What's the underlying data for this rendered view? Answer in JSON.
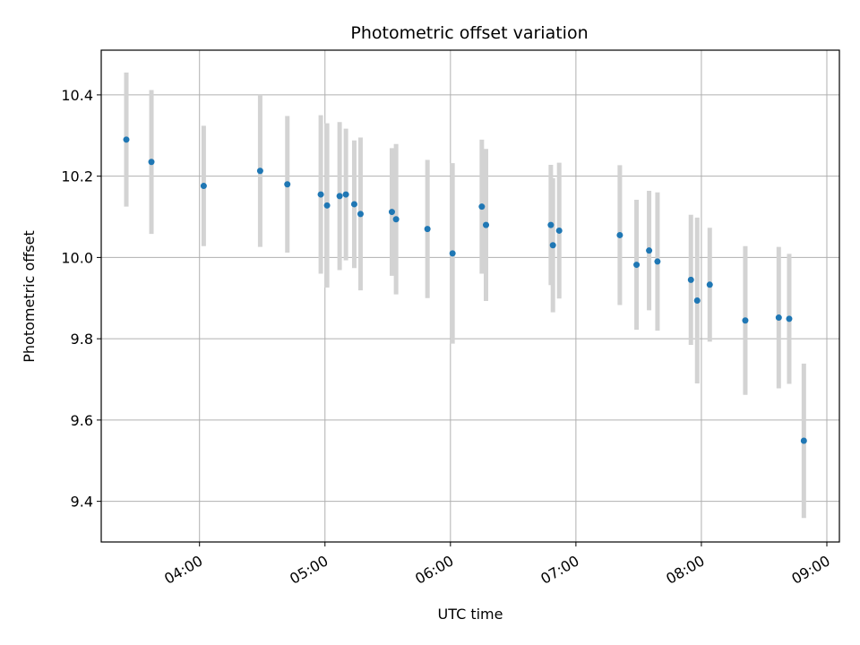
{
  "chart_data": {
    "type": "scatter",
    "title": "Photometric offset variation",
    "xlabel": "UTC time",
    "ylabel": "Photometric offset",
    "xlim": [
      "03:13",
      "09:06"
    ],
    "ylim": [
      9.3,
      10.51
    ],
    "x_ticks": [
      "04:00",
      "05:00",
      "06:00",
      "07:00",
      "08:00",
      "09:00"
    ],
    "y_ticks": [
      "9.4",
      "9.6",
      "9.8",
      "10.0",
      "10.2",
      "10.4"
    ],
    "grid": true,
    "colors": {
      "points": "#1f77b4",
      "errorbars": "#d3d3d3",
      "grid": "#b0b0b0"
    },
    "points": [
      {
        "x": "03:25",
        "y": 10.29,
        "yerr": 0.165
      },
      {
        "x": "03:37",
        "y": 10.235,
        "yerr": 0.177
      },
      {
        "x": "04:02",
        "y": 10.176,
        "yerr": 0.148
      },
      {
        "x": "04:29",
        "y": 10.213,
        "yerr": 0.187
      },
      {
        "x": "04:42",
        "y": 10.18,
        "yerr": 0.168
      },
      {
        "x": "04:58",
        "y": 10.155,
        "yerr": 0.195
      },
      {
        "x": "05:01",
        "y": 10.128,
        "yerr": 0.202
      },
      {
        "x": "05:07",
        "y": 10.151,
        "yerr": 0.182
      },
      {
        "x": "05:10",
        "y": 10.155,
        "yerr": 0.162
      },
      {
        "x": "05:14",
        "y": 10.131,
        "yerr": 0.157
      },
      {
        "x": "05:17",
        "y": 10.107,
        "yerr": 0.188
      },
      {
        "x": "05:32",
        "y": 10.112,
        "yerr": 0.157
      },
      {
        "x": "05:34",
        "y": 10.094,
        "yerr": 0.185
      },
      {
        "x": "05:49",
        "y": 10.07,
        "yerr": 0.17
      },
      {
        "x": "06:01",
        "y": 10.01,
        "yerr": 0.222
      },
      {
        "x": "06:15",
        "y": 10.125,
        "yerr": 0.165
      },
      {
        "x": "06:17",
        "y": 10.08,
        "yerr": 0.187
      },
      {
        "x": "06:48",
        "y": 10.08,
        "yerr": 0.148
      },
      {
        "x": "06:49",
        "y": 10.03,
        "yerr": 0.165
      },
      {
        "x": "06:52",
        "y": 10.066,
        "yerr": 0.167
      },
      {
        "x": "07:21",
        "y": 10.055,
        "yerr": 0.172
      },
      {
        "x": "07:29",
        "y": 9.982,
        "yerr": 0.16
      },
      {
        "x": "07:35",
        "y": 10.017,
        "yerr": 0.147
      },
      {
        "x": "07:39",
        "y": 9.99,
        "yerr": 0.17
      },
      {
        "x": "07:55",
        "y": 9.945,
        "yerr": 0.16
      },
      {
        "x": "07:58",
        "y": 9.894,
        "yerr": 0.204
      },
      {
        "x": "08:04",
        "y": 9.933,
        "yerr": 0.14
      },
      {
        "x": "08:21",
        "y": 9.845,
        "yerr": 0.183
      },
      {
        "x": "08:37",
        "y": 9.852,
        "yerr": 0.174
      },
      {
        "x": "08:42",
        "y": 9.849,
        "yerr": 0.16
      },
      {
        "x": "08:49",
        "y": 9.549,
        "yerr": 0.19
      }
    ]
  }
}
